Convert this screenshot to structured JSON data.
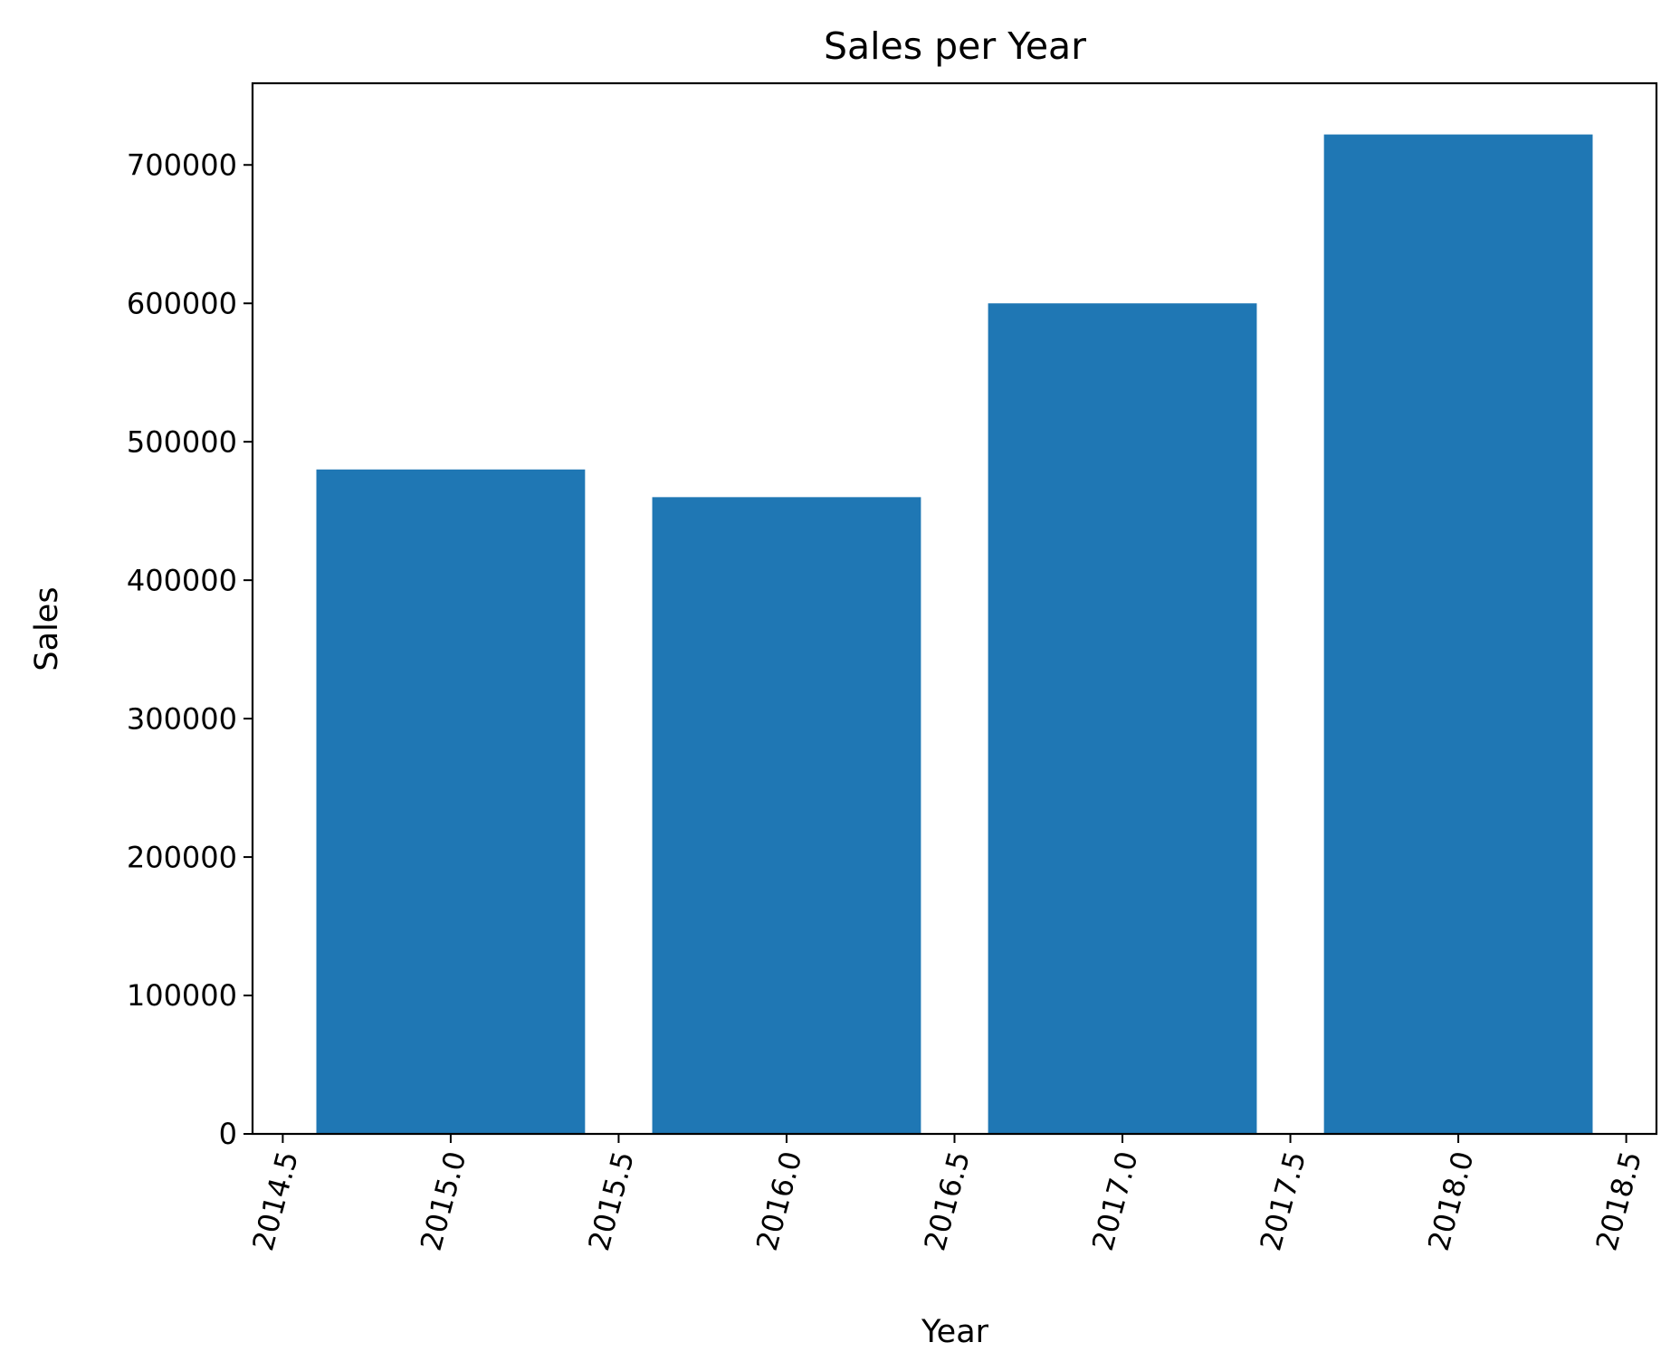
{
  "chart_data": {
    "type": "bar",
    "title": "Sales per Year",
    "xlabel": "Year",
    "ylabel": "Sales",
    "x": [
      2015,
      2016,
      2017,
      2018
    ],
    "values": [
      480000,
      460000,
      600000,
      722000
    ],
    "bar_width": 0.8,
    "xlim": [
      2014.41,
      2018.59
    ],
    "ylim": [
      0,
      759000
    ],
    "xticks": [
      2014.5,
      2015.0,
      2015.5,
      2016.0,
      2016.5,
      2017.0,
      2017.5,
      2018.0,
      2018.5
    ],
    "xtick_labels": [
      "2014.5",
      "2015.0",
      "2015.5",
      "2016.0",
      "2016.5",
      "2017.0",
      "2017.5",
      "2018.0",
      "2018.5"
    ],
    "yticks": [
      0,
      100000,
      200000,
      300000,
      400000,
      500000,
      600000,
      700000
    ],
    "ytick_labels": [
      "0",
      "100000",
      "200000",
      "300000",
      "400000",
      "500000",
      "600000",
      "700000"
    ],
    "xtick_rotation_deg": 75,
    "grid": false,
    "bar_color": "#1f77b4"
  }
}
